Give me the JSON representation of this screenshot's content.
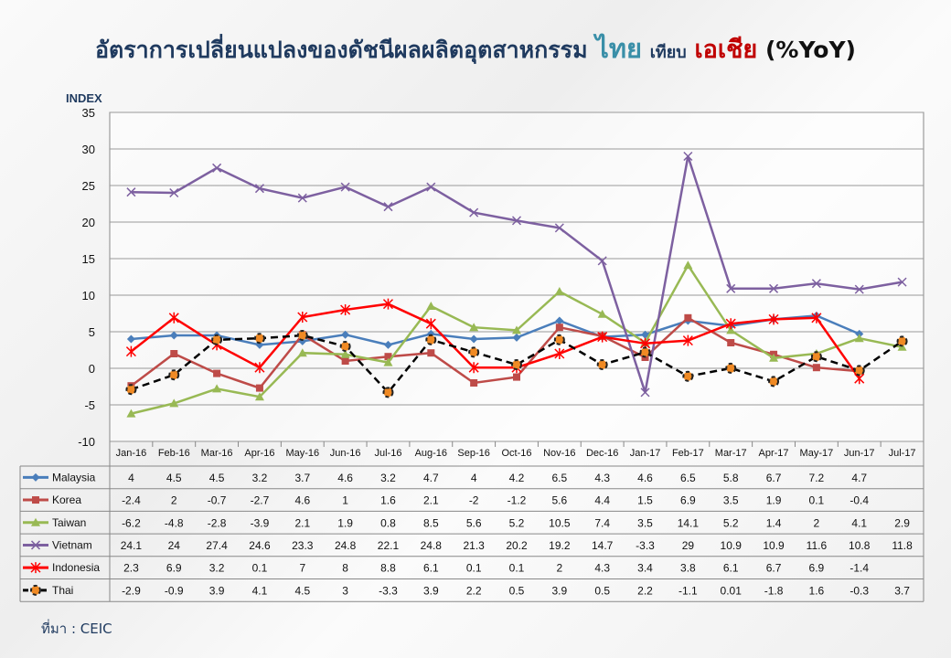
{
  "title": {
    "part1": "อัตราการเปลี่ยนแปลงของดัชนีผลผลิตอุตสาหกรรม",
    "part2": "ไทย",
    "part3": "เทียบ",
    "part4": "เอเชีย",
    "part5": "(%YoY)"
  },
  "source": "ที่มา : CEIC",
  "chart_data": {
    "type": "line",
    "ylabel": "INDEX",
    "ylim": [
      -10,
      35
    ],
    "yticks": [
      -10,
      -5,
      0,
      5,
      10,
      15,
      20,
      25,
      30,
      35
    ],
    "grid": true,
    "legend": "data-table-left",
    "categories": [
      "Jan-16",
      "Feb-16",
      "Mar-16",
      "Apr-16",
      "May-16",
      "Jun-16",
      "Jul-16",
      "Aug-16",
      "Sep-16",
      "Oct-16",
      "Nov-16",
      "Dec-16",
      "Jan-17",
      "Feb-17",
      "Mar-17",
      "Apr-17",
      "May-17",
      "Jun-17",
      "Jul-17"
    ],
    "series": [
      {
        "name": "Malaysia",
        "color": "#4a7ebb",
        "marker": "diamond",
        "values": [
          4,
          4.5,
          4.5,
          3.2,
          3.7,
          4.6,
          3.2,
          4.7,
          4,
          4.2,
          6.5,
          4.3,
          4.6,
          6.5,
          5.8,
          6.7,
          7.2,
          4.7,
          null
        ]
      },
      {
        "name": "Korea",
        "color": "#be4b48",
        "marker": "square",
        "values": [
          -2.4,
          2,
          -0.7,
          -2.7,
          4.6,
          1,
          1.6,
          2.1,
          -2,
          -1.2,
          5.6,
          4.4,
          1.5,
          6.9,
          3.5,
          1.9,
          0.1,
          -0.4,
          null
        ]
      },
      {
        "name": "Taiwan",
        "color": "#98b954",
        "marker": "triangle",
        "values": [
          -6.2,
          -4.8,
          -2.8,
          -3.9,
          2.1,
          1.9,
          0.8,
          8.5,
          5.6,
          5.2,
          10.5,
          7.4,
          3.5,
          14.1,
          5.2,
          1.4,
          2,
          4.1,
          2.9
        ]
      },
      {
        "name": "Vietnam",
        "color": "#7d60a0",
        "marker": "x",
        "values": [
          24.1,
          24,
          27.4,
          24.6,
          23.3,
          24.8,
          22.1,
          24.8,
          21.3,
          20.2,
          19.2,
          14.7,
          -3.3,
          29,
          10.9,
          10.9,
          11.6,
          10.8,
          11.8
        ]
      },
      {
        "name": "Indonesia",
        "color": "#ff0000",
        "marker": "star",
        "values": [
          2.3,
          6.9,
          3.2,
          0.1,
          7,
          8,
          8.8,
          6.1,
          0.1,
          0.1,
          2,
          4.3,
          3.4,
          3.8,
          6.1,
          6.7,
          6.9,
          -1.4,
          null
        ]
      },
      {
        "name": "Thai",
        "color": "#000000",
        "marker": "circle",
        "values": [
          -2.9,
          -0.9,
          3.9,
          4.1,
          4.5,
          3,
          -3.3,
          3.9,
          2.2,
          0.5,
          3.9,
          0.5,
          2.2,
          -1.1,
          0.01,
          -1.8,
          1.6,
          -0.3,
          3.7
        ]
      }
    ]
  }
}
